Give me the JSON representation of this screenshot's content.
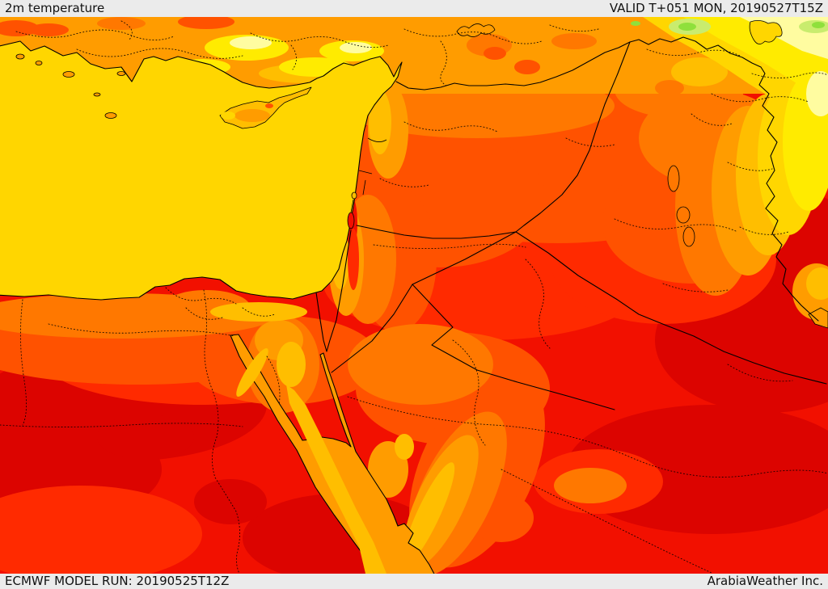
{
  "header": {
    "title": "2m temperature",
    "valid_label": "VALID T+051 MON, 20190527T15Z"
  },
  "footer": {
    "model_run_label": "ECMWF MODEL RUN: 20190525T12Z",
    "credit_label": "ArabiaWeather Inc."
  },
  "palette": {
    "sea_gold": "#FFD600",
    "pale_yellow": "#FFFCA0",
    "yellow": "#FFEB00",
    "gold": "#FFD600",
    "amber": "#FFBE00",
    "orange": "#FF9C00",
    "deep_orange": "#FF7800",
    "orange_red": "#FF5200",
    "red_orange": "#FF2A00",
    "red": "#F21000",
    "dark_red": "#DC0400",
    "bright_green": "#8FE03C",
    "pale_green": "#C9EC6E",
    "border_line": "#000000",
    "bar_bg": "#EBEBEB",
    "bar_text": "#111111"
  }
}
